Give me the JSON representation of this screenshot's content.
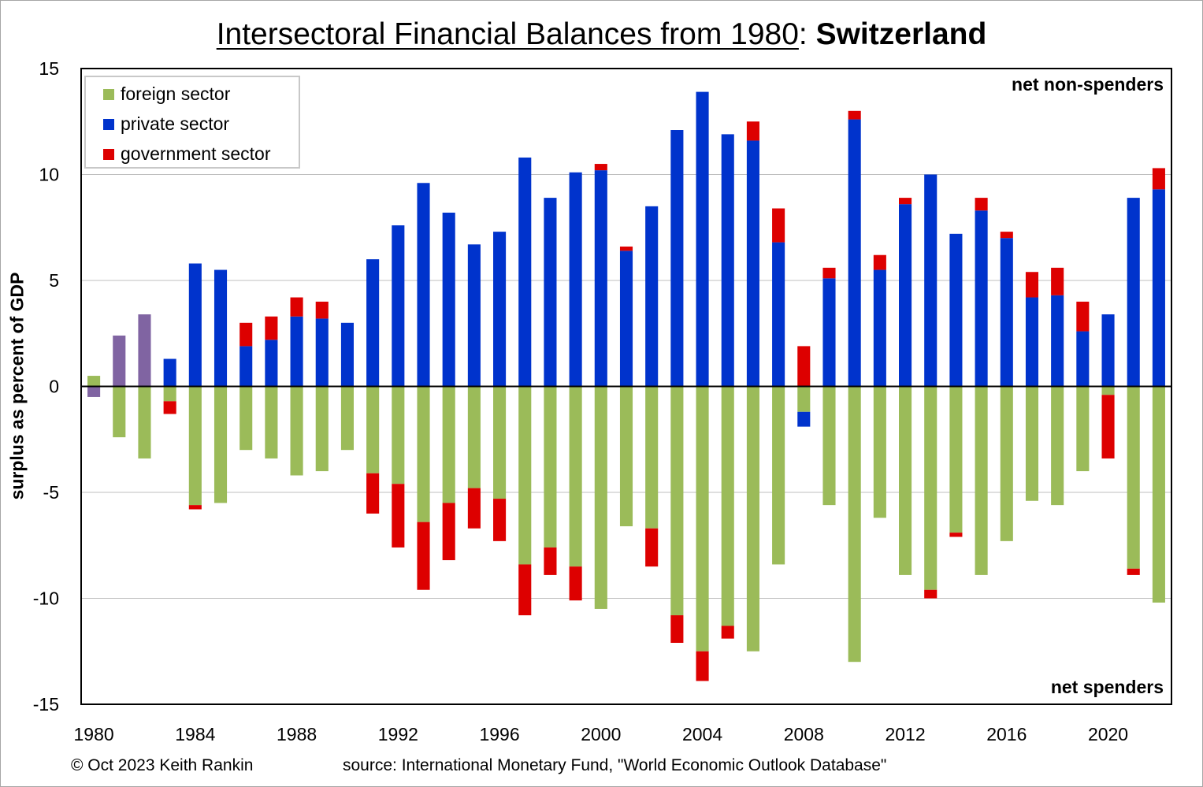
{
  "title": {
    "main": "Intersectoral Financial Balances from 1980",
    "sep": ": ",
    "country": "Switzerland"
  },
  "footer": {
    "copyright": "© Oct 2023 Keith Rankin",
    "source": "source:  International Monetary Fund, \"World Economic Outlook Database\""
  },
  "annotations": {
    "top": "net non-spenders",
    "bottom": "net spenders"
  },
  "colors": {
    "foreign": "#9bbb59",
    "private": "#0033cc",
    "government": "#dd0000",
    "early": "#8064a2"
  },
  "chart_data": {
    "type": "bar",
    "stacking": "diverging",
    "ylabel": "surplus as percent of GDP",
    "ylim": [
      -15,
      15
    ],
    "yticks": [
      -15,
      -10,
      -5,
      0,
      5,
      10,
      15
    ],
    "xticks": [
      "1980",
      "1984",
      "1988",
      "1992",
      "1996",
      "2000",
      "2004",
      "2008",
      "2012",
      "2016",
      "2020"
    ],
    "legend_position": "top-left",
    "grid": true,
    "categories": [
      "1980",
      "1981",
      "1982",
      "1983",
      "1984",
      "1985",
      "1986",
      "1987",
      "1988",
      "1989",
      "1990",
      "1991",
      "1992",
      "1993",
      "1994",
      "1995",
      "1996",
      "1997",
      "1998",
      "1999",
      "2000",
      "2001",
      "2002",
      "2003",
      "2004",
      "2005",
      "2006",
      "2007",
      "2008",
      "2009",
      "2010",
      "2011",
      "2012",
      "2013",
      "2014",
      "2015",
      "2016",
      "2017",
      "2018",
      "2019",
      "2020",
      "2021",
      "2022"
    ],
    "series": [
      {
        "name": "foreign sector",
        "key": "foreign",
        "values": [
          0.5,
          -2.4,
          -3.4,
          -0.7,
          -5.6,
          -5.5,
          -3.0,
          -3.4,
          -4.2,
          -4.0,
          -3.0,
          -4.1,
          -4.6,
          -6.4,
          -5.5,
          -4.8,
          -5.3,
          -8.4,
          -7.6,
          -8.5,
          -10.5,
          -6.6,
          -6.7,
          -10.8,
          -12.5,
          -11.3,
          -12.5,
          -8.4,
          -1.2,
          -5.6,
          -13.0,
          -6.2,
          -8.9,
          -9.6,
          -6.9,
          -8.9,
          -7.3,
          -5.4,
          -5.6,
          -4.0,
          -0.4,
          -8.6,
          -10.2
        ]
      },
      {
        "name": "private sector",
        "key": "private",
        "values": [
          -0.5,
          2.4,
          3.4,
          1.3,
          5.8,
          5.5,
          1.9,
          2.2,
          3.3,
          3.2,
          3.0,
          6.0,
          7.6,
          9.6,
          8.2,
          6.7,
          7.3,
          10.8,
          8.9,
          10.1,
          10.2,
          6.4,
          8.5,
          12.1,
          13.9,
          11.9,
          11.6,
          6.8,
          -0.7,
          5.1,
          12.6,
          5.5,
          8.6,
          10.0,
          7.2,
          8.3,
          7.0,
          4.2,
          4.3,
          2.6,
          3.4,
          8.9,
          9.3
        ]
      },
      {
        "name": "government sector",
        "key": "government",
        "values": [
          0,
          0,
          0,
          -0.6,
          -0.2,
          0,
          1.1,
          1.1,
          0.9,
          0.8,
          0,
          -1.9,
          -3.0,
          -3.2,
          -2.7,
          -1.9,
          -2.0,
          -2.4,
          -1.3,
          -1.6,
          0.3,
          0.2,
          -1.8,
          -1.3,
          -1.4,
          -0.6,
          0.9,
          1.6,
          1.9,
          0.5,
          0.4,
          0.7,
          0.3,
          -0.4,
          -0.2,
          0.6,
          0.3,
          1.2,
          1.3,
          1.4,
          -3.0,
          -0.3,
          1.0
        ]
      }
    ]
  }
}
